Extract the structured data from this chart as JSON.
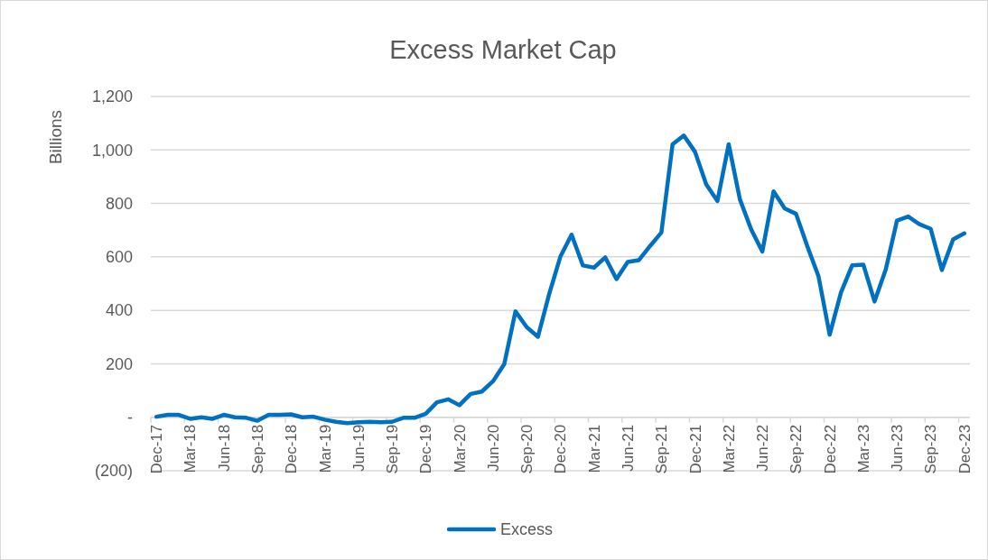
{
  "chart_data": {
    "type": "line",
    "title": "Excess Market Cap",
    "ylabel": "Billions",
    "categories": [
      "Dec-17",
      null,
      null,
      "Mar-18",
      null,
      null,
      "Jun-18",
      null,
      null,
      "Sep-18",
      null,
      null,
      "Dec-18",
      null,
      null,
      "Mar-19",
      null,
      null,
      "Jun-19",
      null,
      null,
      "Sep-19",
      null,
      null,
      "Dec-19",
      null,
      null,
      "Mar-20",
      null,
      null,
      "Jun-20",
      null,
      null,
      "Sep-20",
      null,
      null,
      "Dec-20",
      null,
      null,
      "Mar-21",
      null,
      null,
      "Jun-21",
      null,
      null,
      "Sep-21",
      null,
      null,
      "Dec-21",
      null,
      null,
      "Mar-22",
      null,
      null,
      "Jun-22",
      null,
      null,
      "Sep-22",
      null,
      null,
      "Dec-22",
      null,
      null,
      "Mar-23",
      null,
      null,
      "Jun-23",
      null,
      null,
      "Sep-23",
      null,
      null,
      "Dec-23"
    ],
    "series": [
      {
        "name": "Excess",
        "color": "#0070c0",
        "values": [
          2,
          9,
          9,
          -6,
          0,
          -6,
          9,
          0,
          -2,
          -13,
          9,
          9,
          11,
          0,
          2,
          -9,
          -17,
          -22,
          -19,
          -17,
          -19,
          -17,
          -2,
          -2,
          13,
          56,
          67,
          45,
          87,
          96,
          135,
          199,
          396,
          337,
          301,
          461,
          601,
          683,
          568,
          560,
          598,
          517,
          581,
          588,
          641,
          691,
          1021,
          1054,
          993,
          871,
          809,
          1021,
          815,
          703,
          620,
          845,
          781,
          761,
          641,
          528,
          309,
          466,
          568,
          571,
          433,
          553,
          736,
          751,
          722,
          705,
          551,
          665,
          688
        ]
      }
    ],
    "ylim": [
      -200,
      1200
    ],
    "yticks": [
      {
        "value": -200,
        "label": "(200)"
      },
      {
        "value": 0,
        "label": "-"
      },
      200,
      400,
      600,
      800,
      {
        "value": 1000,
        "label": "1,000"
      },
      {
        "value": 1200,
        "label": "1,200"
      }
    ],
    "grid": "y",
    "legend": "bottom",
    "line_style": "solid",
    "marker": "none"
  }
}
